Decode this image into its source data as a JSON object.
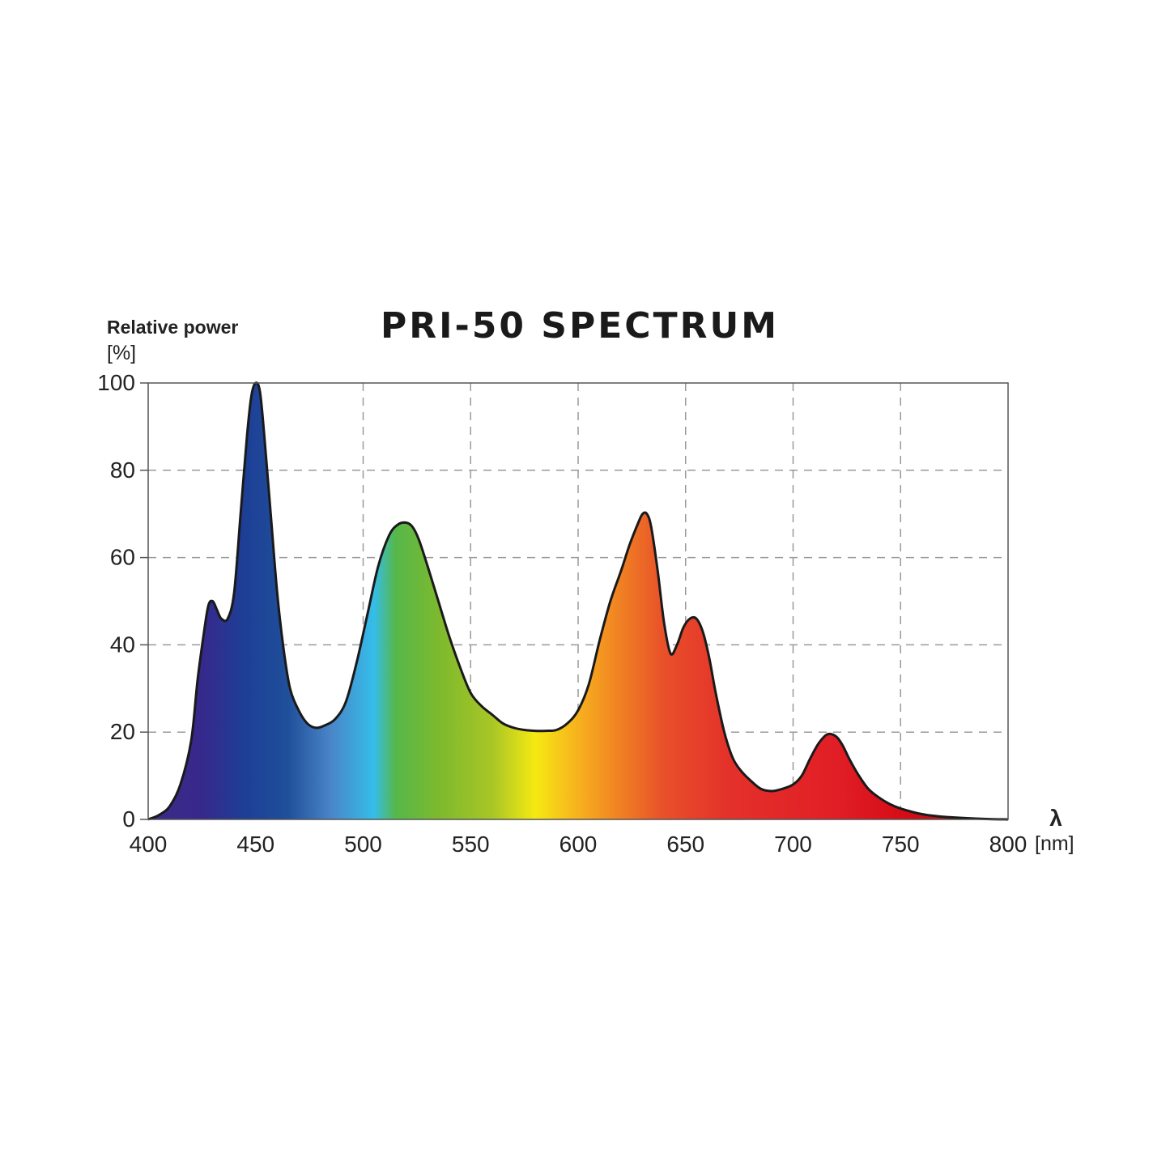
{
  "chart_data": {
    "type": "area",
    "title": "PRI-50 SPECTRUM",
    "ylabel": "Relative power",
    "yunit": "[%]",
    "xlabel": "λ",
    "xunit": "[nm]",
    "xlim": [
      400,
      800
    ],
    "ylim": [
      0,
      100
    ],
    "xticks": [
      "400",
      "450",
      "500",
      "550",
      "600",
      "650",
      "700",
      "750",
      "800"
    ],
    "yticks": [
      "0",
      "20",
      "40",
      "60",
      "80",
      "100"
    ],
    "grid": true,
    "gridStyle": "dashed",
    "series": [
      {
        "x": [
          400,
          405,
          410,
          415,
          420,
          423,
          426,
          428,
          430,
          432,
          434,
          437,
          440,
          443,
          446,
          448,
          450,
          452,
          454,
          457,
          460,
          463,
          466,
          470,
          474,
          478,
          482,
          487,
          492,
          497,
          502,
          507,
          512,
          516,
          520,
          523,
          526,
          530,
          535,
          540,
          545,
          550,
          555,
          560,
          565,
          570,
          575,
          580,
          585,
          590,
          595,
          600,
          605,
          610,
          615,
          620,
          624,
          628,
          630,
          632,
          634,
          637,
          640,
          643,
          646,
          649,
          652,
          655,
          658,
          661,
          664,
          668,
          672,
          676,
          680,
          685,
          690,
          695,
          700,
          704,
          708,
          712,
          716,
          720,
          723,
          726,
          730,
          735,
          740,
          745,
          750,
          760,
          770,
          780,
          790,
          800
        ],
        "y": [
          0,
          1,
          3,
          8,
          18,
          32,
          43,
          49,
          50,
          48,
          46,
          46,
          52,
          70,
          88,
          97,
          100,
          98,
          88,
          70,
          52,
          39,
          30,
          25,
          22,
          21,
          21.5,
          23,
          27,
          36,
          47,
          58,
          65,
          67.5,
          68,
          67,
          64,
          58,
          50,
          42,
          35,
          29,
          26,
          24,
          22,
          21,
          20.5,
          20.3,
          20.3,
          20.5,
          22,
          25,
          31,
          41,
          50,
          57,
          63,
          68,
          70,
          70,
          67,
          57,
          45,
          38,
          40,
          44,
          46,
          46,
          43,
          37,
          29,
          20,
          14,
          11,
          9,
          7,
          6.5,
          7,
          8,
          10,
          14,
          17.5,
          19.5,
          19,
          17,
          14,
          10.5,
          7,
          5,
          3.5,
          2.5,
          1.2,
          0.6,
          0.3,
          0.1,
          0
        ]
      }
    ],
    "spectrumColors": [
      [
        400,
        "#3c2b85"
      ],
      [
        425,
        "#37288c"
      ],
      [
        445,
        "#1d3f96"
      ],
      [
        465,
        "#1f4f9a"
      ],
      [
        485,
        "#4a85c8"
      ],
      [
        505,
        "#35bde9"
      ],
      [
        515,
        "#55b84a"
      ],
      [
        535,
        "#7db92e"
      ],
      [
        560,
        "#a8c626"
      ],
      [
        580,
        "#f5e912"
      ],
      [
        600,
        "#f7b11e"
      ],
      [
        620,
        "#f07f23"
      ],
      [
        640,
        "#e8502a"
      ],
      [
        670,
        "#e4312a"
      ],
      [
        720,
        "#e11e26"
      ],
      [
        750,
        "#d60d17"
      ],
      [
        800,
        "#a80f14"
      ]
    ]
  }
}
